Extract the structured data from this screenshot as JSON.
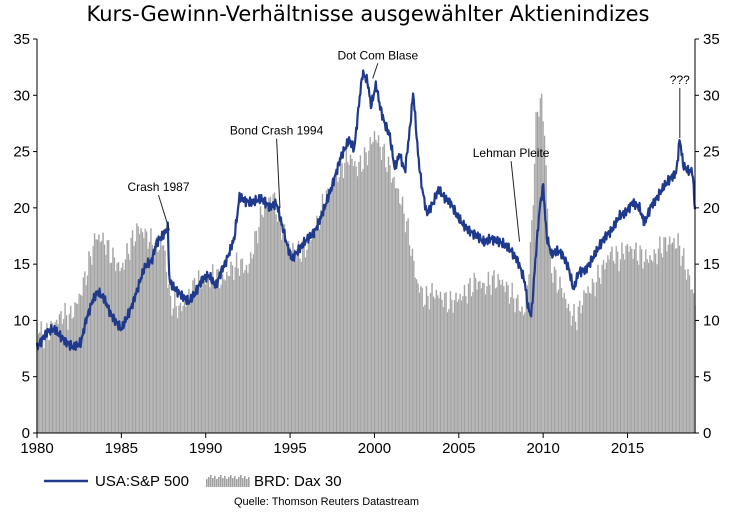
{
  "chart_data": {
    "type": "area+line",
    "title": "Kurs-Gewinn-Verhältnisse ausgewählter Aktienindizes",
    "xlabel": "",
    "ylabel": "",
    "xlim": [
      1980,
      2019
    ],
    "ylim": [
      0,
      35
    ],
    "y_ticks": [
      "0",
      "5",
      "10",
      "15",
      "20",
      "25",
      "30",
      "35"
    ],
    "x_ticks": [
      "1980",
      "1985",
      "1990",
      "1995",
      "2000",
      "2005",
      "2010",
      "2015"
    ],
    "x_tick_values": [
      1980,
      1985,
      1990,
      1995,
      2000,
      2005,
      2010,
      2015
    ],
    "y_tick_values": [
      0,
      5,
      10,
      15,
      20,
      25,
      30,
      35
    ],
    "grid": false,
    "legend_position": "bottom-left",
    "source": "Quelle: Thomson Reuters Datastream",
    "series": [
      {
        "name": "USA:S&P 500",
        "style": "line",
        "color": "#1f3a8c",
        "points": [
          [
            1980.0,
            7.6
          ],
          [
            1980.3,
            8.3
          ],
          [
            1980.6,
            9.0
          ],
          [
            1981.0,
            9.2
          ],
          [
            1981.4,
            8.6
          ],
          [
            1981.8,
            8.0
          ],
          [
            1982.2,
            7.6
          ],
          [
            1982.6,
            8.0
          ],
          [
            1982.9,
            10.0
          ],
          [
            1983.3,
            11.8
          ],
          [
            1983.6,
            12.5
          ],
          [
            1984.0,
            11.9
          ],
          [
            1984.4,
            10.5
          ],
          [
            1984.8,
            9.6
          ],
          [
            1985.0,
            9.2
          ],
          [
            1985.3,
            10.2
          ],
          [
            1985.6,
            11.2
          ],
          [
            1986.0,
            13.0
          ],
          [
            1986.4,
            14.8
          ],
          [
            1986.8,
            15.3
          ],
          [
            1987.1,
            17.0
          ],
          [
            1987.5,
            17.6
          ],
          [
            1987.75,
            18.2
          ],
          [
            1987.85,
            13.4
          ],
          [
            1988.2,
            12.8
          ],
          [
            1988.6,
            12.2
          ],
          [
            1989.0,
            11.6
          ],
          [
            1989.4,
            12.5
          ],
          [
            1989.8,
            13.7
          ],
          [
            1990.2,
            14.0
          ],
          [
            1990.6,
            13.0
          ],
          [
            1990.9,
            14.3
          ],
          [
            1991.3,
            15.6
          ],
          [
            1991.7,
            17.3
          ],
          [
            1992.0,
            21.0
          ],
          [
            1992.4,
            20.6
          ],
          [
            1992.8,
            20.5
          ],
          [
            1993.3,
            20.8
          ],
          [
            1993.8,
            20.1
          ],
          [
            1994.2,
            20.4
          ],
          [
            1994.5,
            18.6
          ],
          [
            1994.8,
            16.8
          ],
          [
            1995.1,
            15.5
          ],
          [
            1995.6,
            16.4
          ],
          [
            1996.0,
            17.2
          ],
          [
            1996.5,
            18.0
          ],
          [
            1997.0,
            19.8
          ],
          [
            1997.5,
            22.0
          ],
          [
            1998.0,
            24.5
          ],
          [
            1998.5,
            26.0
          ],
          [
            1998.8,
            25.2
          ],
          [
            1999.1,
            29.5
          ],
          [
            1999.3,
            32.0
          ],
          [
            1999.6,
            31.2
          ],
          [
            1999.8,
            29.0
          ],
          [
            2000.1,
            31.0
          ],
          [
            2000.3,
            29.2
          ],
          [
            2000.6,
            27.5
          ],
          [
            2000.9,
            26.5
          ],
          [
            2001.2,
            23.5
          ],
          [
            2001.5,
            24.8
          ],
          [
            2001.8,
            23.2
          ],
          [
            2002.1,
            27.0
          ],
          [
            2002.3,
            30.3
          ],
          [
            2002.6,
            24.5
          ],
          [
            2002.8,
            22.0
          ],
          [
            2003.1,
            19.5
          ],
          [
            2003.5,
            20.5
          ],
          [
            2003.8,
            21.6
          ],
          [
            2004.1,
            21.0
          ],
          [
            2004.5,
            20.5
          ],
          [
            2004.9,
            19.3
          ],
          [
            2005.3,
            18.4
          ],
          [
            2005.7,
            17.9
          ],
          [
            2006.1,
            17.5
          ],
          [
            2006.5,
            16.9
          ],
          [
            2006.9,
            17.3
          ],
          [
            2007.3,
            17.1
          ],
          [
            2007.7,
            16.7
          ],
          [
            2008.1,
            16.2
          ],
          [
            2008.5,
            15.3
          ],
          [
            2008.9,
            13.5
          ],
          [
            2009.1,
            11.2
          ],
          [
            2009.3,
            10.4
          ],
          [
            2009.6,
            16.5
          ],
          [
            2009.8,
            20.0
          ],
          [
            2010.0,
            22.0
          ],
          [
            2010.2,
            17.5
          ],
          [
            2010.5,
            15.8
          ],
          [
            2010.8,
            16.2
          ],
          [
            2011.1,
            16.0
          ],
          [
            2011.5,
            14.7
          ],
          [
            2011.8,
            12.7
          ],
          [
            2012.1,
            14.3
          ],
          [
            2012.5,
            14.5
          ],
          [
            2012.9,
            15.4
          ],
          [
            2013.3,
            16.5
          ],
          [
            2013.7,
            17.5
          ],
          [
            2014.1,
            18.1
          ],
          [
            2014.5,
            19.2
          ],
          [
            2014.9,
            19.6
          ],
          [
            2015.3,
            20.5
          ],
          [
            2015.7,
            20.0
          ],
          [
            2016.0,
            18.6
          ],
          [
            2016.4,
            20.2
          ],
          [
            2016.8,
            21.0
          ],
          [
            2017.2,
            22.0
          ],
          [
            2017.6,
            22.7
          ],
          [
            2017.9,
            23.2
          ],
          [
            2018.1,
            26.2
          ],
          [
            2018.3,
            23.8
          ],
          [
            2018.6,
            23.2
          ],
          [
            2018.85,
            23.3
          ],
          [
            2019.0,
            19.8
          ]
        ]
      },
      {
        "name": "BRD: Dax 30",
        "style": "bars",
        "color": "#a0a0a0",
        "points": [
          [
            1980.0,
            9.5
          ],
          [
            1980.5,
            8.5
          ],
          [
            1981.0,
            9.6
          ],
          [
            1981.5,
            10.5
          ],
          [
            1982.0,
            10.3
          ],
          [
            1982.5,
            12.0
          ],
          [
            1983.0,
            14.5
          ],
          [
            1983.5,
            17.5
          ],
          [
            1984.0,
            17.0
          ],
          [
            1984.5,
            15.5
          ],
          [
            1985.0,
            14.5
          ],
          [
            1985.5,
            16.5
          ],
          [
            1986.0,
            18.2
          ],
          [
            1986.5,
            17.5
          ],
          [
            1987.0,
            16.5
          ],
          [
            1987.5,
            16.8
          ],
          [
            1987.9,
            11.6
          ],
          [
            1988.5,
            11.0
          ],
          [
            1989.0,
            12.0
          ],
          [
            1989.5,
            13.5
          ],
          [
            1990.0,
            13.5
          ],
          [
            1990.5,
            14.0
          ],
          [
            1991.0,
            13.5
          ],
          [
            1991.5,
            14.5
          ],
          [
            1992.0,
            15.0
          ],
          [
            1992.5,
            14.5
          ],
          [
            1993.0,
            17.5
          ],
          [
            1993.5,
            20.5
          ],
          [
            1994.0,
            21.0
          ],
          [
            1994.5,
            18.2
          ],
          [
            1995.0,
            16.5
          ],
          [
            1995.5,
            16.0
          ],
          [
            1996.0,
            16.5
          ],
          [
            1996.5,
            18.0
          ],
          [
            1997.0,
            20.5
          ],
          [
            1997.5,
            22.0
          ],
          [
            1998.0,
            23.5
          ],
          [
            1998.5,
            24.5
          ],
          [
            1999.0,
            23.5
          ],
          [
            1999.5,
            24.5
          ],
          [
            2000.0,
            26.5
          ],
          [
            2000.5,
            25.0
          ],
          [
            2001.0,
            23.0
          ],
          [
            2001.5,
            21.0
          ],
          [
            2002.0,
            18.0
          ],
          [
            2002.5,
            13.5
          ],
          [
            2003.0,
            11.8
          ],
          [
            2003.5,
            12.5
          ],
          [
            2004.0,
            12.0
          ],
          [
            2004.5,
            11.5
          ],
          [
            2005.0,
            12.0
          ],
          [
            2005.5,
            12.5
          ],
          [
            2006.0,
            13.5
          ],
          [
            2006.5,
            13.0
          ],
          [
            2007.0,
            13.5
          ],
          [
            2007.5,
            13.5
          ],
          [
            2008.0,
            12.5
          ],
          [
            2008.5,
            11.5
          ],
          [
            2008.9,
            10.5
          ],
          [
            2009.3,
            17.0
          ],
          [
            2009.6,
            28.0
          ],
          [
            2009.9,
            30.0
          ],
          [
            2010.1,
            26.0
          ],
          [
            2010.4,
            15.0
          ],
          [
            2010.8,
            13.5
          ],
          [
            2011.2,
            12.5
          ],
          [
            2011.6,
            10.5
          ],
          [
            2012.0,
            10.2
          ],
          [
            2012.5,
            12.5
          ],
          [
            2013.0,
            13.0
          ],
          [
            2013.5,
            14.5
          ],
          [
            2014.0,
            16.0
          ],
          [
            2014.5,
            15.5
          ],
          [
            2015.0,
            16.5
          ],
          [
            2015.5,
            16.0
          ],
          [
            2016.0,
            15.5
          ],
          [
            2016.5,
            15.5
          ],
          [
            2017.0,
            16.5
          ],
          [
            2017.5,
            17.0
          ],
          [
            2018.0,
            16.8
          ],
          [
            2018.5,
            14.5
          ],
          [
            2019.0,
            11.8
          ]
        ]
      }
    ],
    "annotations": [
      {
        "label": "Crash 1987",
        "target": [
          1987.85,
          18.0
        ],
        "text_at": [
          1987.2,
          21.5
        ]
      },
      {
        "label": "Bond Crash 1994",
        "target": [
          1994.4,
          20.0
        ],
        "text_at": [
          1994.2,
          26.5
        ]
      },
      {
        "label": "Dot Com Blase",
        "target": [
          1999.9,
          31.5
        ],
        "text_at": [
          2000.2,
          33.2
        ]
      },
      {
        "label": "Lehman Pleite",
        "target": [
          2008.6,
          17.0
        ],
        "text_at": [
          2008.1,
          24.5
        ]
      },
      {
        "label": "???",
        "target": [
          2018.1,
          26.2
        ],
        "text_at": [
          2018.1,
          31.0
        ]
      }
    ]
  }
}
